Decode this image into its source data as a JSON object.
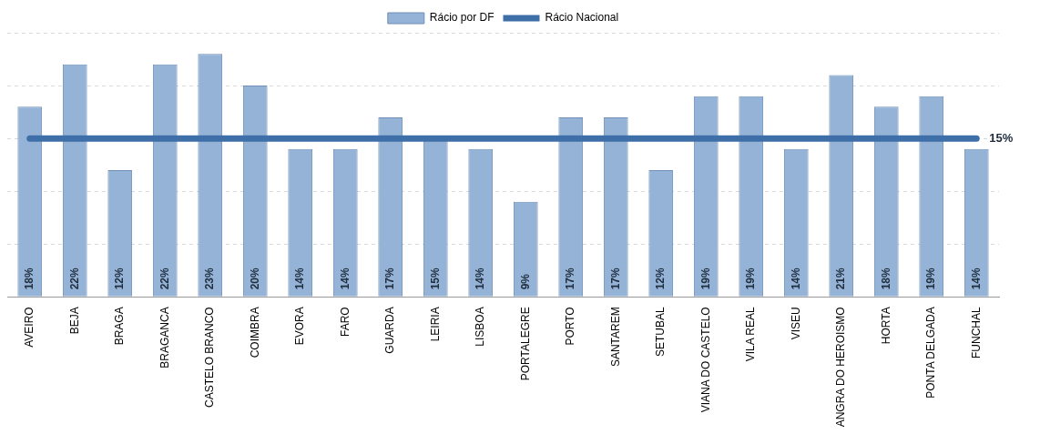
{
  "chart_data": {
    "type": "bar",
    "categories": [
      "AVEIRO",
      "BEJA",
      "BRAGA",
      "BRAGANCA",
      "CASTELO BRANCO",
      "COIMBRA",
      "EVORA",
      "FARO",
      "GUARDA",
      "LEIRIA",
      "LISBOA",
      "PORTALEGRE",
      "PORTO",
      "SANTAREM",
      "SETUBAL",
      "VIANA DO CASTELO",
      "VILA REAL",
      "VISEU",
      "ANGRA DO HEROISMO",
      "HORTA",
      "PONTA DELGADA",
      "FUNCHAL"
    ],
    "series": [
      {
        "name": "Rácio por DF",
        "color": "#95b3d7",
        "values": [
          18,
          22,
          12,
          22,
          23,
          20,
          14,
          14,
          17,
          15,
          14,
          9,
          17,
          17,
          12,
          19,
          19,
          14,
          21,
          18,
          19,
          14
        ],
        "value_labels": [
          "18%",
          "22%",
          "12%",
          "22%",
          "23%",
          "20%",
          "14%",
          "14%",
          "17%",
          "15%",
          "14%",
          "9%",
          "17%",
          "17%",
          "12%",
          "19%",
          "19%",
          "14%",
          "21%",
          "18%",
          "19%",
          "14%"
        ]
      },
      {
        "name": "Rácio Nacional",
        "type": "line",
        "color": "#3f6fa8",
        "values": [
          15,
          15,
          15,
          15,
          15,
          15,
          15,
          15,
          15,
          15,
          15,
          15,
          15,
          15,
          15,
          15,
          15,
          15,
          15,
          15,
          15,
          15
        ],
        "value_labels": [
          null,
          null,
          null,
          null,
          null,
          null,
          null,
          null,
          null,
          null,
          null,
          null,
          null,
          null,
          null,
          null,
          null,
          null,
          null,
          null,
          null,
          "15%"
        ]
      }
    ],
    "ylim": [
      0,
      25
    ],
    "yticks": [
      {
        "value": 0,
        "label": null
      },
      {
        "value": 5,
        "label": null
      },
      {
        "value": 10,
        "label": null
      },
      {
        "value": 15,
        "label": null
      },
      {
        "value": 20,
        "label": null
      },
      {
        "value": 25,
        "label": null
      }
    ],
    "tick_labels": "x",
    "grid": "y",
    "legend": "top",
    "marker": "none"
  }
}
